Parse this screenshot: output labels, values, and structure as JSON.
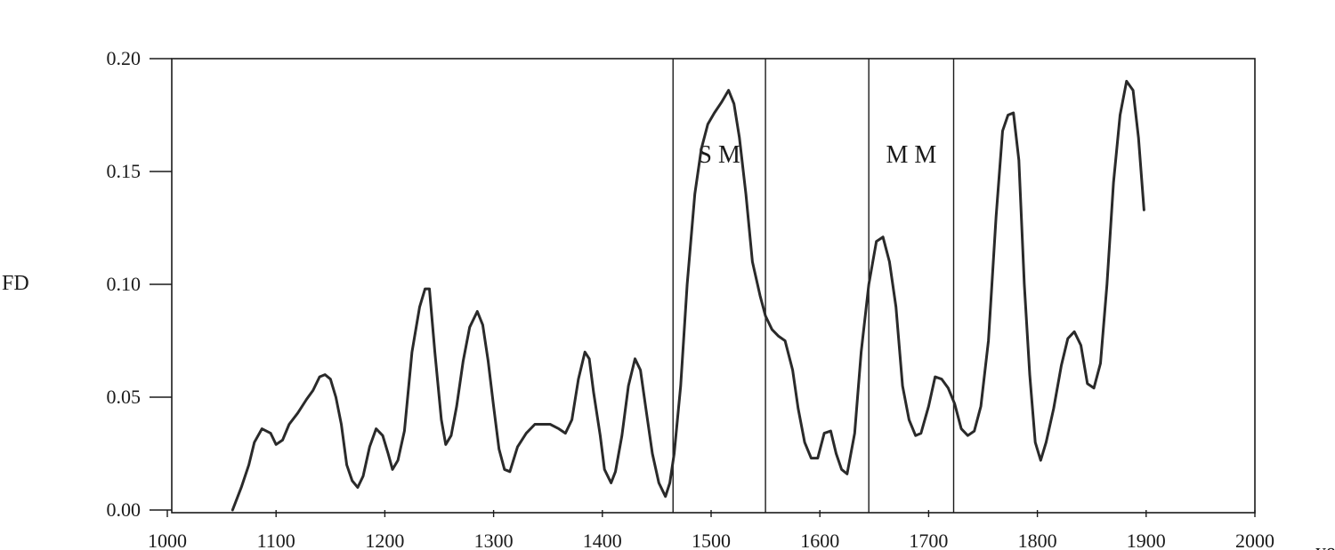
{
  "chart_data": {
    "type": "line",
    "title": "",
    "xlabel": "ye",
    "ylabel": "FD",
    "xlim": [
      1000,
      2000
    ],
    "ylim": [
      0.0,
      0.2
    ],
    "grid": false,
    "x_ticks": [
      1000,
      1100,
      1200,
      1300,
      1400,
      1500,
      1600,
      1700,
      1800,
      1900,
      2000
    ],
    "x_tick_labels": [
      "1000",
      "1100",
      "1200",
      "1300",
      "1400",
      "1500",
      "1600",
      "1700",
      "1800",
      "1900",
      "2000"
    ],
    "y_ticks": [
      0.0,
      0.05,
      0.1,
      0.15,
      0.2
    ],
    "y_tick_labels": [
      "0.00",
      "0.05",
      "0.10",
      "0.15",
      "0.20"
    ],
    "bands": [
      {
        "label": "S M",
        "start": 1465,
        "end": 1550
      },
      {
        "label": "M M",
        "start": 1645,
        "end": 1723
      }
    ],
    "series": [
      {
        "points": [
          [
            1060,
            0.0
          ],
          [
            1068,
            0.01
          ],
          [
            1075,
            0.02
          ],
          [
            1080,
            0.03
          ],
          [
            1087,
            0.036
          ],
          [
            1095,
            0.034
          ],
          [
            1100,
            0.029
          ],
          [
            1106,
            0.031
          ],
          [
            1112,
            0.038
          ],
          [
            1120,
            0.043
          ],
          [
            1128,
            0.049
          ],
          [
            1134,
            0.053
          ],
          [
            1140,
            0.059
          ],
          [
            1145,
            0.06
          ],
          [
            1150,
            0.058
          ],
          [
            1155,
            0.05
          ],
          [
            1160,
            0.038
          ],
          [
            1165,
            0.02
          ],
          [
            1170,
            0.013
          ],
          [
            1175,
            0.01
          ],
          [
            1180,
            0.015
          ],
          [
            1186,
            0.028
          ],
          [
            1192,
            0.036
          ],
          [
            1198,
            0.033
          ],
          [
            1203,
            0.025
          ],
          [
            1207,
            0.018
          ],
          [
            1212,
            0.022
          ],
          [
            1218,
            0.035
          ],
          [
            1225,
            0.07
          ],
          [
            1232,
            0.09
          ],
          [
            1237,
            0.098
          ],
          [
            1241,
            0.098
          ],
          [
            1246,
            0.07
          ],
          [
            1252,
            0.04
          ],
          [
            1256,
            0.029
          ],
          [
            1261,
            0.033
          ],
          [
            1266,
            0.046
          ],
          [
            1272,
            0.066
          ],
          [
            1278,
            0.081
          ],
          [
            1285,
            0.088
          ],
          [
            1290,
            0.082
          ],
          [
            1295,
            0.066
          ],
          [
            1300,
            0.046
          ],
          [
            1305,
            0.027
          ],
          [
            1310,
            0.018
          ],
          [
            1315,
            0.017
          ],
          [
            1322,
            0.028
          ],
          [
            1330,
            0.034
          ],
          [
            1338,
            0.038
          ],
          [
            1345,
            0.038
          ],
          [
            1352,
            0.038
          ],
          [
            1360,
            0.036
          ],
          [
            1366,
            0.034
          ],
          [
            1372,
            0.04
          ],
          [
            1378,
            0.058
          ],
          [
            1384,
            0.07
          ],
          [
            1388,
            0.067
          ],
          [
            1392,
            0.052
          ],
          [
            1398,
            0.033
          ],
          [
            1402,
            0.018
          ],
          [
            1408,
            0.012
          ],
          [
            1412,
            0.017
          ],
          [
            1418,
            0.033
          ],
          [
            1424,
            0.055
          ],
          [
            1430,
            0.067
          ],
          [
            1435,
            0.062
          ],
          [
            1440,
            0.045
          ],
          [
            1446,
            0.025
          ],
          [
            1452,
            0.012
          ],
          [
            1458,
            0.006
          ],
          [
            1462,
            0.012
          ],
          [
            1466,
            0.025
          ],
          [
            1472,
            0.055
          ],
          [
            1478,
            0.1
          ],
          [
            1485,
            0.14
          ],
          [
            1491,
            0.16
          ],
          [
            1497,
            0.171
          ],
          [
            1503,
            0.176
          ],
          [
            1510,
            0.181
          ],
          [
            1516,
            0.186
          ],
          [
            1521,
            0.18
          ],
          [
            1526,
            0.165
          ],
          [
            1532,
            0.14
          ],
          [
            1538,
            0.11
          ],
          [
            1545,
            0.095
          ],
          [
            1550,
            0.086
          ],
          [
            1556,
            0.08
          ],
          [
            1562,
            0.077
          ],
          [
            1568,
            0.075
          ],
          [
            1575,
            0.062
          ],
          [
            1580,
            0.045
          ],
          [
            1586,
            0.03
          ],
          [
            1592,
            0.023
          ],
          [
            1598,
            0.023
          ],
          [
            1604,
            0.034
          ],
          [
            1610,
            0.035
          ],
          [
            1615,
            0.025
          ],
          [
            1620,
            0.018
          ],
          [
            1625,
            0.016
          ],
          [
            1632,
            0.034
          ],
          [
            1638,
            0.07
          ],
          [
            1645,
            0.1
          ],
          [
            1652,
            0.119
          ],
          [
            1658,
            0.121
          ],
          [
            1664,
            0.11
          ],
          [
            1670,
            0.09
          ],
          [
            1676,
            0.055
          ],
          [
            1682,
            0.04
          ],
          [
            1688,
            0.033
          ],
          [
            1693,
            0.034
          ],
          [
            1700,
            0.046
          ],
          [
            1706,
            0.059
          ],
          [
            1712,
            0.058
          ],
          [
            1718,
            0.054
          ],
          [
            1724,
            0.047
          ],
          [
            1730,
            0.036
          ],
          [
            1736,
            0.033
          ],
          [
            1742,
            0.035
          ],
          [
            1748,
            0.046
          ],
          [
            1755,
            0.075
          ],
          [
            1762,
            0.13
          ],
          [
            1768,
            0.168
          ],
          [
            1773,
            0.175
          ],
          [
            1778,
            0.176
          ],
          [
            1783,
            0.155
          ],
          [
            1788,
            0.1
          ],
          [
            1793,
            0.06
          ],
          [
            1798,
            0.03
          ],
          [
            1803,
            0.022
          ],
          [
            1808,
            0.03
          ],
          [
            1815,
            0.045
          ],
          [
            1822,
            0.064
          ],
          [
            1828,
            0.076
          ],
          [
            1834,
            0.079
          ],
          [
            1840,
            0.073
          ],
          [
            1846,
            0.056
          ],
          [
            1852,
            0.054
          ],
          [
            1858,
            0.065
          ],
          [
            1864,
            0.1
          ],
          [
            1870,
            0.145
          ],
          [
            1876,
            0.175
          ],
          [
            1882,
            0.19
          ],
          [
            1888,
            0.186
          ],
          [
            1893,
            0.165
          ],
          [
            1898,
            0.133
          ]
        ]
      }
    ]
  }
}
